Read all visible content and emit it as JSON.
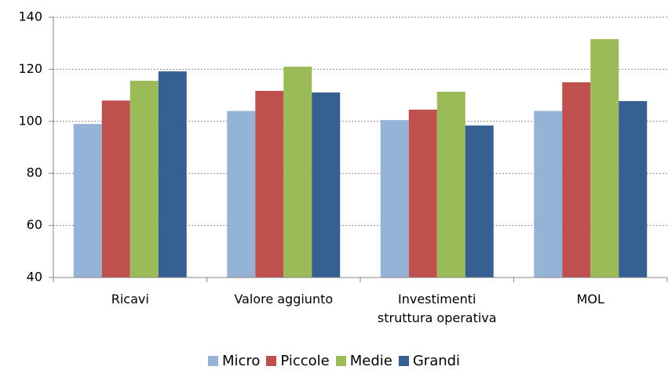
{
  "chart_data": {
    "type": "bar",
    "categories": [
      "Ricavi",
      "Valore aggiunto",
      "Investimenti\nstruttura operativa",
      "MOL"
    ],
    "series": [
      {
        "name": "Micro",
        "color": "#95b3d7",
        "values": [
          99,
          104,
          100.5,
          104
        ]
      },
      {
        "name": "Piccole",
        "color": "#c0504d",
        "values": [
          108,
          111.7,
          104.5,
          115
        ]
      },
      {
        "name": "Medie",
        "color": "#9bbb59",
        "values": [
          115.6,
          121,
          111.4,
          131.6
        ]
      },
      {
        "name": "Grandi",
        "color": "#376092",
        "values": [
          119.2,
          111.1,
          98.4,
          107.8
        ]
      }
    ],
    "ylim": [
      40,
      140
    ],
    "yticks": [
      40,
      60,
      80,
      100,
      120,
      140
    ],
    "grid": true,
    "legend": "bottom"
  }
}
